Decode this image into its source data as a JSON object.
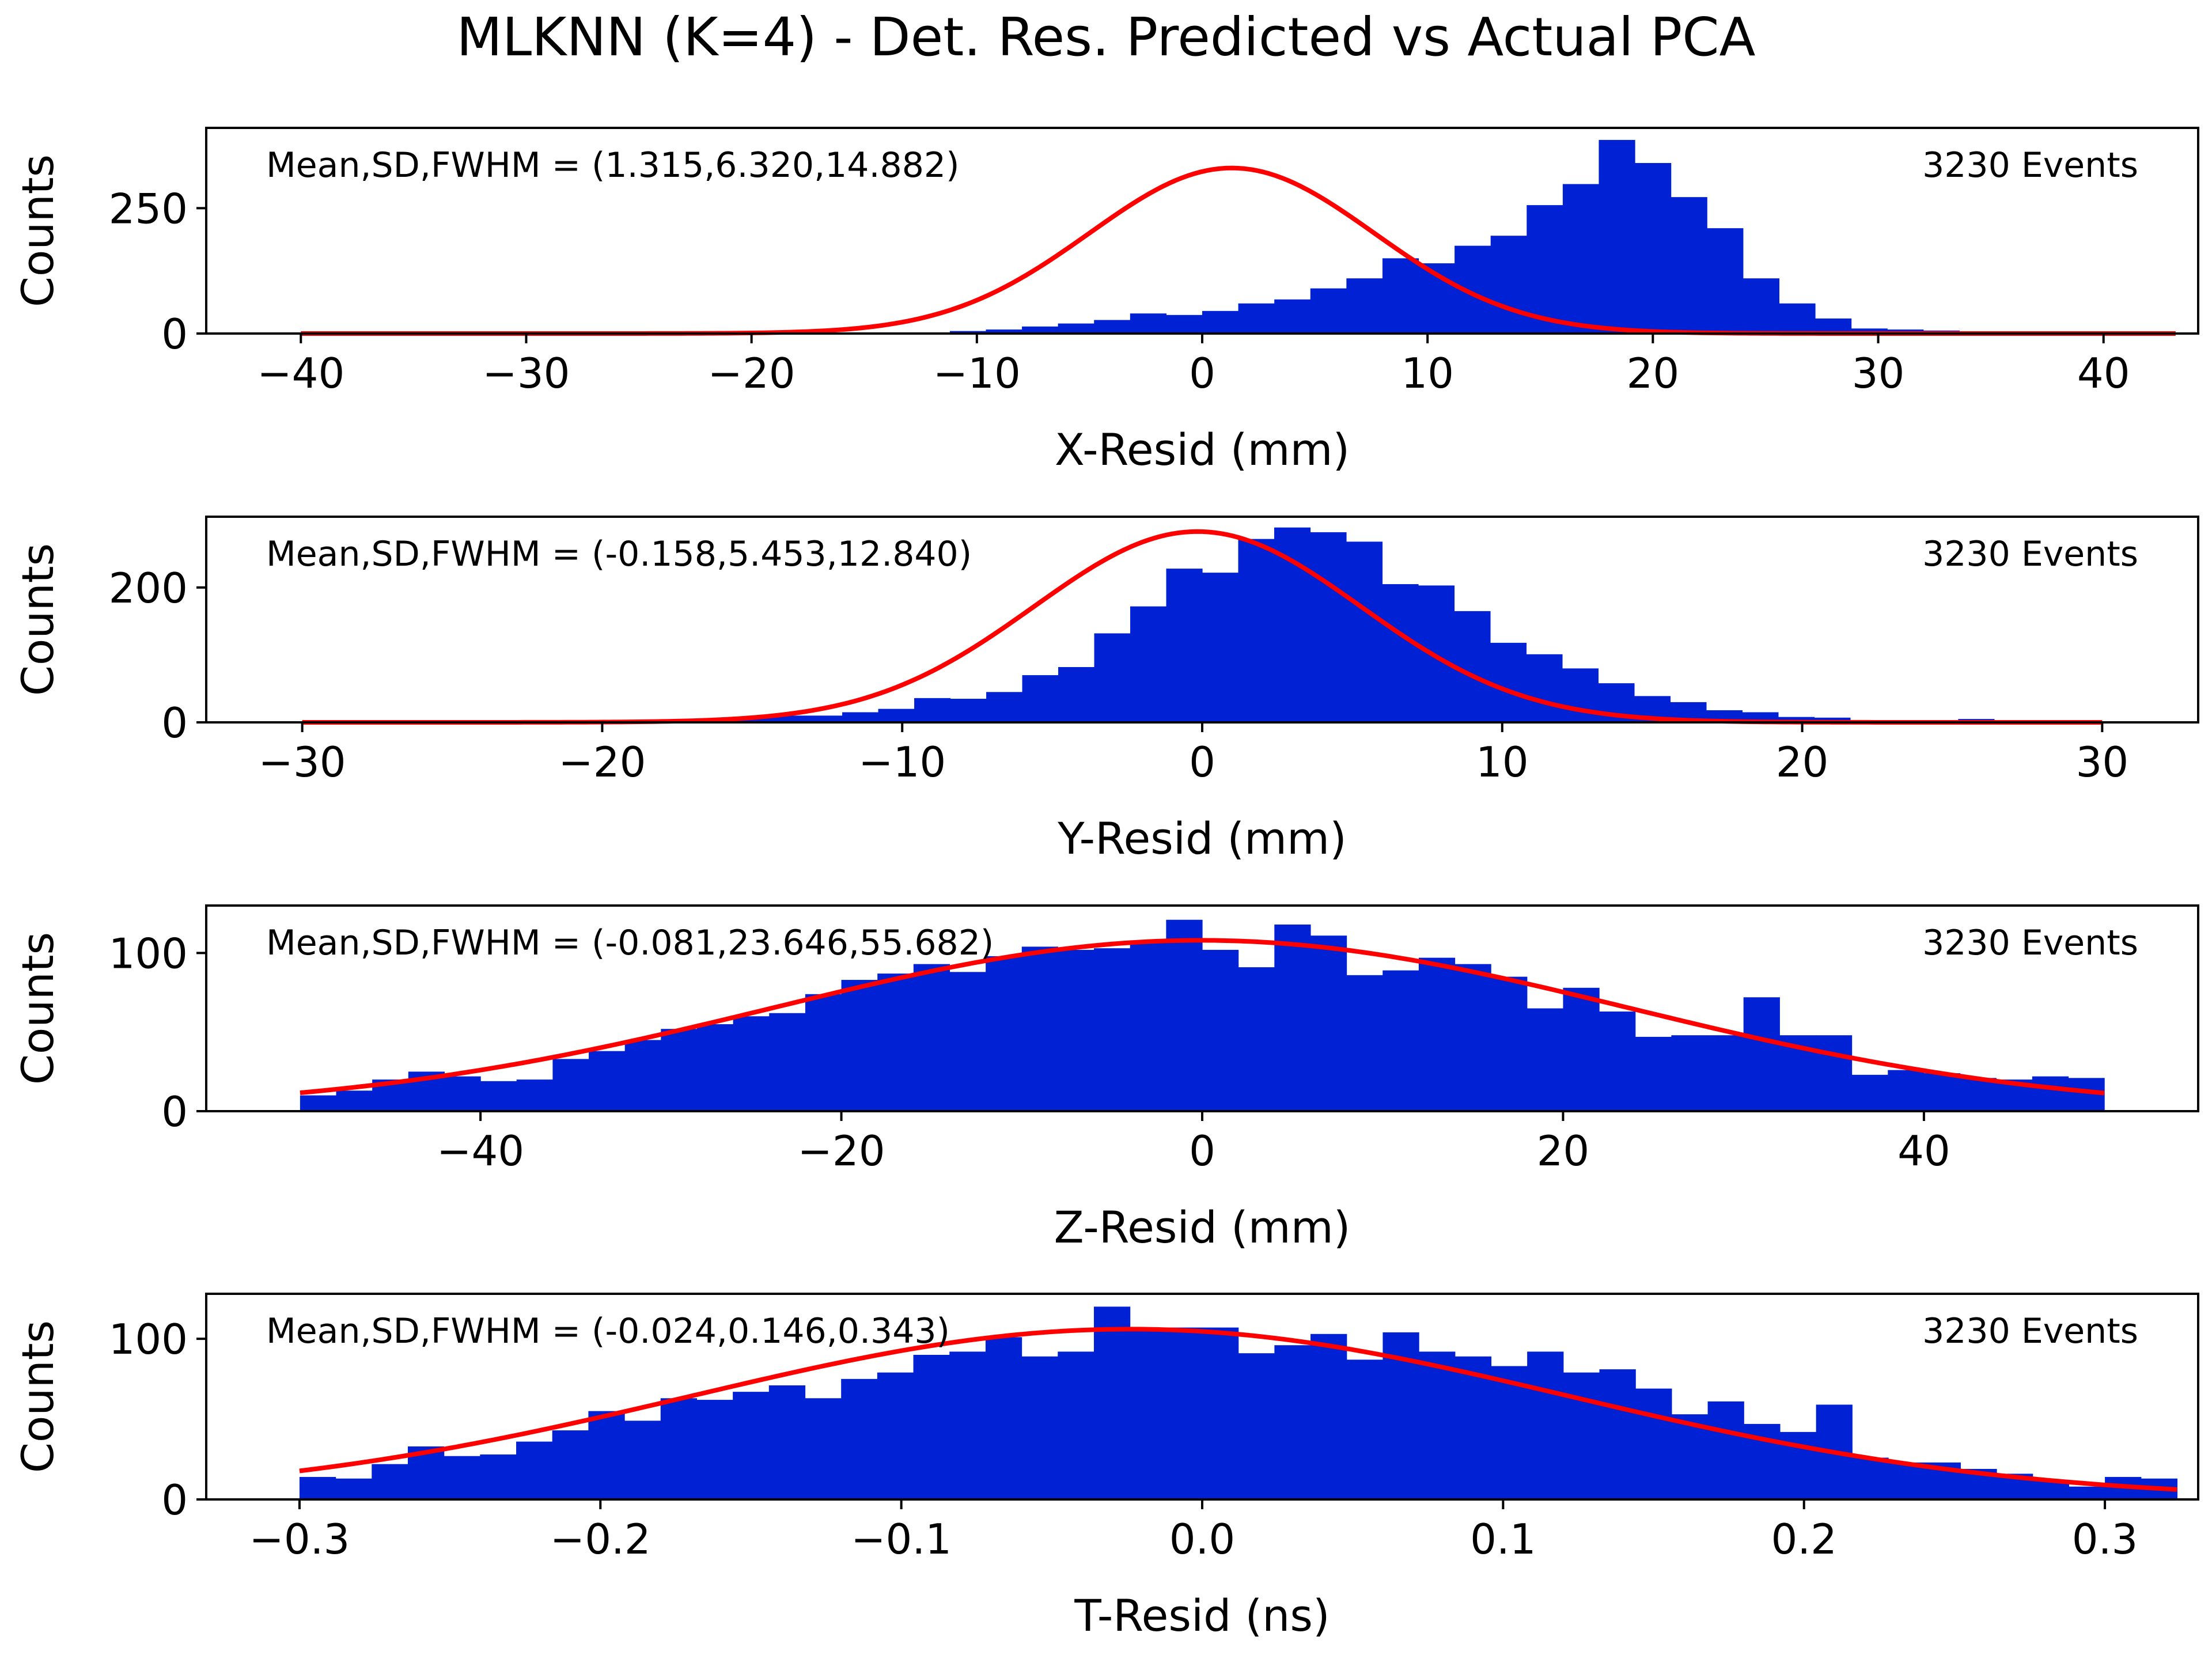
{
  "title": "MLKNN (K=4) - Det. Res. Predicted vs Actual PCA",
  "colors": {
    "bars": "#0022d4",
    "fit": "#ff0000",
    "axes": "#000000"
  },
  "chart_data": [
    {
      "type": "bar",
      "xlabel": "X-Resid (mm)",
      "ylabel": "Counts",
      "xlim": [
        -44.2,
        44.2
      ],
      "ylim": [
        0,
        410
      ],
      "xticks": [
        -40,
        -30,
        -20,
        -10,
        0,
        10,
        20,
        30,
        40
      ],
      "xtick_labels": [
        "−40",
        "−30",
        "−20",
        "−10",
        "0",
        "10",
        "20",
        "30",
        "40"
      ],
      "yticks": [
        0,
        250
      ],
      "ytick_labels": [
        "0",
        "250"
      ],
      "stats_text": "Mean,SD,FWHM = (1.315,6.320,14.882)",
      "events_text": "3230 Events",
      "bins": {
        "start": -40,
        "width": 1.6
      },
      "counts": [
        0,
        0,
        0,
        0,
        0,
        0,
        0,
        0,
        0,
        0,
        0,
        0,
        0,
        0,
        0,
        0,
        1,
        2,
        5,
        8,
        14,
        20,
        27,
        40,
        37,
        45,
        60,
        68,
        90,
        110,
        150,
        140,
        175,
        195,
        256,
        298,
        386,
        340,
        272,
        210,
        110,
        60,
        30,
        10,
        8,
        6,
        4,
        3,
        2,
        2,
        1,
        0
      ],
      "fit": {
        "amplitude": 330,
        "mean": 1.315,
        "sd": 6.32
      }
    },
    {
      "type": "bar",
      "xlabel": "Y-Resid (mm)",
      "ylabel": "Counts",
      "xlim": [
        -33.2,
        33.2
      ],
      "ylim": [
        0,
        305
      ],
      "xticks": [
        -30,
        -20,
        -10,
        0,
        10,
        20,
        30
      ],
      "xtick_labels": [
        "−30",
        "−20",
        "−10",
        "0",
        "10",
        "20",
        "30"
      ],
      "yticks": [
        0,
        200
      ],
      "ytick_labels": [
        "0",
        "200"
      ],
      "stats_text": "Mean,SD,FWHM = (-0.158,5.453,12.840)",
      "events_text": "3230 Events",
      "bins": {
        "start": -30,
        "width": 1.2
      },
      "counts": [
        0,
        0,
        0,
        0,
        0,
        0,
        0,
        1,
        1,
        1,
        2,
        3,
        8,
        10,
        10,
        15,
        20,
        36,
        35,
        45,
        70,
        82,
        132,
        172,
        228,
        222,
        272,
        289,
        282,
        268,
        205,
        203,
        165,
        118,
        101,
        80,
        58,
        39,
        30,
        18,
        15,
        8,
        7,
        3,
        2,
        1,
        5,
        3,
        1,
        0
      ],
      "fit": {
        "amplitude": 283,
        "mean": -0.158,
        "sd": 5.453
      }
    },
    {
      "type": "bar",
      "xlabel": "Z-Resid (mm)",
      "ylabel": "Counts",
      "xlim": [
        -55.2,
        55.2
      ],
      "ylim": [
        0,
        130
      ],
      "xticks": [
        -40,
        -20,
        0,
        20,
        40
      ],
      "xtick_labels": [
        "−40",
        "−20",
        "0",
        "20",
        "40"
      ],
      "yticks": [
        0,
        100
      ],
      "ytick_labels": [
        "0",
        "100"
      ],
      "stats_text": "Mean,SD,FWHM = (-0.081,23.646,55.682)",
      "events_text": "3230 Events",
      "bins": {
        "start": -50,
        "width": 2
      },
      "counts": [
        10,
        13,
        20,
        25,
        22,
        19,
        20,
        33,
        38,
        45,
        52,
        55,
        60,
        62,
        74,
        83,
        87,
        93,
        88,
        98,
        104,
        102,
        103,
        108,
        121,
        102,
        91,
        118,
        111,
        86,
        89,
        97,
        93,
        85,
        65,
        78,
        63,
        47,
        48,
        48,
        72,
        48,
        48,
        23,
        26,
        24,
        21,
        20,
        22,
        21
      ],
      "fit": {
        "amplitude": 108,
        "mean": -0.081,
        "sd": 23.646
      }
    },
    {
      "type": "bar",
      "xlabel": "T-Resid (ns)",
      "ylabel": "Counts",
      "xlim": [
        -0.331,
        0.331
      ],
      "ylim": [
        0,
        128
      ],
      "xticks": [
        -0.3,
        -0.2,
        -0.1,
        0.0,
        0.1,
        0.2,
        0.3
      ],
      "xtick_labels": [
        "−0.3",
        "−0.2",
        "−0.1",
        "0.0",
        "0.1",
        "0.2",
        "0.3"
      ],
      "yticks": [
        0,
        100
      ],
      "ytick_labels": [
        "0",
        "100"
      ],
      "stats_text": "Mean,SD,FWHM = (-0.024,0.146,0.343)",
      "events_text": "3230 Events",
      "bins": {
        "start": -0.3,
        "width": 0.012
      },
      "counts": [
        14,
        13,
        22,
        33,
        27,
        28,
        36,
        43,
        55,
        49,
        63,
        62,
        67,
        71,
        63,
        75,
        79,
        90,
        92,
        101,
        89,
        92,
        120,
        107,
        107,
        107,
        91,
        96,
        103,
        87,
        104,
        92,
        89,
        83,
        92,
        79,
        81,
        69,
        53,
        61,
        47,
        42,
        59,
        26,
        23,
        23,
        19,
        16,
        12,
        8,
        14,
        13
      ],
      "fit": {
        "amplitude": 106,
        "mean": -0.024,
        "sd": 0.146
      }
    }
  ]
}
